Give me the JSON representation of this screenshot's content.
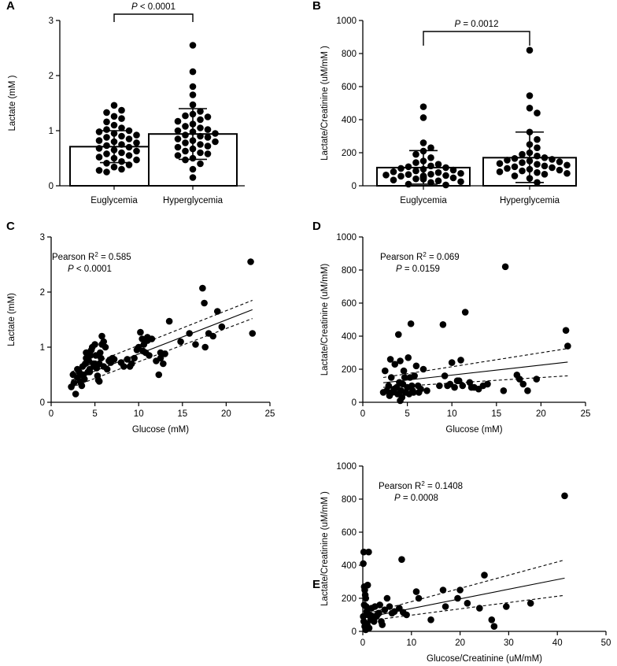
{
  "colors": {
    "ink": "#000000",
    "background": "#ffffff",
    "bar_fill": "#ffffff"
  },
  "chart_data": [
    {
      "panel": "A",
      "type": "bar",
      "categories": [
        "Euglycemia",
        "Hyperglycemia"
      ],
      "values": [
        0.71,
        0.94
      ],
      "error_bars": [
        {
          "low": 0.42,
          "high": 1.0
        },
        {
          "low": 0.48,
          "high": 1.4
        }
      ],
      "points": [
        [
          1.46,
          1.37,
          1.33,
          1.26,
          1.22,
          1.16,
          1.1,
          1.05,
          1.02,
          1.0,
          0.98,
          0.95,
          0.92,
          0.9,
          0.88,
          0.85,
          0.82,
          0.8,
          0.78,
          0.75,
          0.73,
          0.7,
          0.68,
          0.65,
          0.63,
          0.6,
          0.58,
          0.55,
          0.52,
          0.5,
          0.47,
          0.44,
          0.41,
          0.38,
          0.34,
          0.3,
          0.28,
          0.25
        ],
        [
          2.55,
          2.07,
          1.8,
          1.65,
          1.47,
          1.35,
          1.3,
          1.27,
          1.25,
          1.2,
          1.17,
          1.12,
          1.08,
          1.05,
          1.02,
          1.0,
          0.98,
          0.95,
          0.92,
          0.9,
          0.88,
          0.85,
          0.82,
          0.8,
          0.78,
          0.75,
          0.72,
          0.7,
          0.67,
          0.63,
          0.6,
          0.58,
          0.55,
          0.5,
          0.47,
          0.4,
          0.3,
          0.15
        ]
      ],
      "ylim": [
        0,
        3
      ],
      "yticks": [
        "0",
        "1",
        "2",
        "3"
      ],
      "ylabel": "Lactate (mM )",
      "significance": {
        "prefix": "P",
        "text": " < 0.0001"
      }
    },
    {
      "panel": "B",
      "type": "bar",
      "categories": [
        "Euglycemia",
        "Hyperglycemia"
      ],
      "values": [
        110,
        170
      ],
      "error_bars": [
        {
          "low": 10,
          "high": 213
        },
        {
          "low": 20,
          "high": 325
        }
      ],
      "points": [
        [
          478,
          412,
          260,
          230,
          210,
          190,
          170,
          150,
          140,
          130,
          120,
          115,
          110,
          105,
          100,
          95,
          90,
          85,
          80,
          75,
          70,
          68,
          65,
          62,
          60,
          58,
          55,
          52,
          50,
          48,
          45,
          42,
          40,
          35,
          30,
          25,
          20,
          10,
          5
        ],
        [
          820,
          545,
          470,
          440,
          325,
          280,
          250,
          230,
          200,
          190,
          180,
          170,
          165,
          160,
          155,
          150,
          145,
          140,
          135,
          130,
          125,
          120,
          115,
          110,
          105,
          100,
          95,
          90,
          85,
          80,
          75,
          70,
          60,
          45,
          20
        ]
      ],
      "ylim": [
        0,
        1000
      ],
      "yticks": [
        "0",
        "200",
        "400",
        "600",
        "800",
        "1000"
      ],
      "ylabel": "Lactate/Creatinine (uM/mM )",
      "significance": {
        "prefix": "P",
        "text": " = 0.0012"
      }
    },
    {
      "panel": "C",
      "type": "scatter",
      "x": [
        2.3,
        2.6,
        2.8,
        3.0,
        3.2,
        3.3,
        3.5,
        3.6,
        3.8,
        3.9,
        4.0,
        4.1,
        4.2,
        4.3,
        4.4,
        4.5,
        4.6,
        4.7,
        4.8,
        4.9,
        5.0,
        5.1,
        5.2,
        5.3,
        5.4,
        5.5,
        5.6,
        5.7,
        5.8,
        6.0,
        6.2,
        6.4,
        6.6,
        6.8,
        7.0,
        7.2,
        8.0,
        8.3,
        8.7,
        9.0,
        9.2,
        9.5,
        9.8,
        10.0,
        10.2,
        10.4,
        10.6,
        10.8,
        11.0,
        11.2,
        11.5,
        12.0,
        12.3,
        12.5,
        12.8,
        13.0,
        13.5,
        14.8,
        15.8,
        16.5,
        17.3,
        17.5,
        17.6,
        18.0,
        18.5,
        19.0,
        19.5,
        22.8,
        23.0,
        2.5,
        3.0,
        3.4,
        4.0,
        4.4,
        5.0,
        5.5,
        6.0,
        10.5,
        11.0,
        12.5,
        3.7,
        5.8
      ],
      "y": [
        0.28,
        0.35,
        0.15,
        0.45,
        0.55,
        0.38,
        0.3,
        0.65,
        0.42,
        0.7,
        0.8,
        0.9,
        0.55,
        0.75,
        0.6,
        0.85,
        0.95,
        1.0,
        0.7,
        0.65,
        1.05,
        0.85,
        0.62,
        0.48,
        0.4,
        0.7,
        0.9,
        0.8,
        1.2,
        1.1,
        1.0,
        0.6,
        0.75,
        0.72,
        0.8,
        0.78,
        0.72,
        0.65,
        0.78,
        0.65,
        0.7,
        0.8,
        0.95,
        1.0,
        1.27,
        1.15,
        1.05,
        0.9,
        1.12,
        0.85,
        1.15,
        0.75,
        0.5,
        0.8,
        0.7,
        0.88,
        1.47,
        1.1,
        1.25,
        1.05,
        2.07,
        1.8,
        1.0,
        1.25,
        1.2,
        1.65,
        1.37,
        2.55,
        1.25,
        0.5,
        0.6,
        0.5,
        0.9,
        0.55,
        0.7,
        0.38,
        0.65,
        0.93,
        1.18,
        0.9,
        0.5,
        1.05
      ],
      "fit": {
        "x": [
          2.3,
          23
        ],
        "y": [
          0.4,
          1.68
        ]
      },
      "ci_upper": {
        "x": [
          2.3,
          23
        ],
        "y": [
          0.55,
          1.85
        ]
      },
      "ci_lower": {
        "x": [
          2.3,
          23
        ],
        "y": [
          0.27,
          1.52
        ]
      },
      "xlim": [
        0,
        25
      ],
      "xticks": [
        "0",
        "5",
        "10",
        "15",
        "20",
        "25"
      ],
      "ylim": [
        0,
        3
      ],
      "yticks": [
        "0",
        "1",
        "2",
        "3"
      ],
      "xlabel": "Glucose (mM)",
      "ylabel": "Lactate (mM)",
      "annotation": {
        "stat_prefix": "Pearson R",
        "stat_sup": "2",
        "stat_value": " = 0.585",
        "p_prefix": "P",
        "p_text": " < 0.0001"
      }
    },
    {
      "panel": "D",
      "type": "scatter",
      "x": [
        2.3,
        2.5,
        2.7,
        2.9,
        3.0,
        3.2,
        3.3,
        3.5,
        3.6,
        3.8,
        3.9,
        4.0,
        4.1,
        4.2,
        4.3,
        4.4,
        4.5,
        4.6,
        4.7,
        4.8,
        5.0,
        5.1,
        5.2,
        5.3,
        5.4,
        5.5,
        5.6,
        5.8,
        6.0,
        6.3,
        6.5,
        6.8,
        7.2,
        8.6,
        9.0,
        9.2,
        9.5,
        9.8,
        10.0,
        10.3,
        10.6,
        11.0,
        11.2,
        11.5,
        12.0,
        12.5,
        13.0,
        13.5,
        14.0,
        15.8,
        16.0,
        17.3,
        17.6,
        18.0,
        18.5,
        19.5,
        22.8,
        23.0,
        3.1,
        4.2,
        5.7,
        6.2,
        10.8,
        12.2
      ],
      "y": [
        60,
        190,
        70,
        100,
        40,
        150,
        60,
        80,
        230,
        90,
        50,
        410,
        120,
        250,
        70,
        30,
        110,
        190,
        150,
        60,
        90,
        270,
        50,
        150,
        475,
        100,
        70,
        160,
        220,
        60,
        80,
        200,
        70,
        100,
        470,
        160,
        100,
        110,
        240,
        90,
        130,
        255,
        100,
        545,
        120,
        90,
        80,
        100,
        110,
        70,
        820,
        165,
        140,
        110,
        70,
        140,
        435,
        340,
        260,
        10,
        60,
        100,
        130,
        90
      ],
      "fit": {
        "x": [
          2.3,
          23
        ],
        "y": [
          118,
          243
        ]
      },
      "ci_upper": {
        "x": [
          2.3,
          23
        ],
        "y": [
          150,
          325
        ]
      },
      "ci_lower": {
        "x": [
          2.3,
          23
        ],
        "y": [
          90,
          160
        ]
      },
      "xlim": [
        0,
        25
      ],
      "xticks": [
        "0",
        "5",
        "10",
        "15",
        "20",
        "25"
      ],
      "ylim": [
        0,
        1000
      ],
      "yticks": [
        "0",
        "200",
        "400",
        "600",
        "800",
        "1000"
      ],
      "xlabel": "Glucose (mM)",
      "ylabel": "Lactate/Creatinine (uM/mM)",
      "annotation": {
        "stat_prefix": "Pearson R",
        "stat_sup": "2",
        "stat_value": " = 0.069",
        "p_prefix": "P",
        "p_text": " = 0.0159"
      }
    },
    {
      "panel": "E",
      "type": "scatter",
      "x": [
        0.1,
        0.2,
        0.3,
        0.4,
        0.5,
        0.6,
        0.7,
        0.8,
        1.0,
        1.2,
        1.5,
        1.8,
        2.0,
        2.3,
        2.5,
        2.8,
        3.0,
        3.3,
        3.5,
        3.8,
        4.0,
        4.5,
        5.0,
        5.5,
        6.0,
        6.5,
        7.5,
        8.0,
        8.3,
        9.0,
        11.0,
        11.5,
        14.0,
        16.5,
        17.0,
        19.5,
        20.0,
        21.5,
        24.0,
        25.0,
        26.5,
        27.0,
        29.5,
        34.5,
        41.5,
        0.2,
        0.4,
        0.6,
        1.3,
        0.1,
        0.3,
        0.5,
        0.9,
        1.1,
        1.6,
        2.1,
        3.2
      ],
      "y": [
        410,
        480,
        270,
        250,
        220,
        200,
        150,
        120,
        280,
        480,
        100,
        140,
        80,
        60,
        150,
        90,
        100,
        110,
        160,
        60,
        40,
        130,
        200,
        150,
        110,
        120,
        140,
        435,
        115,
        100,
        240,
        200,
        70,
        250,
        150,
        200,
        250,
        170,
        140,
        340,
        70,
        30,
        150,
        170,
        820,
        60,
        30,
        10,
        20,
        90,
        160,
        50,
        40,
        100,
        70,
        90,
        110
      ],
      "fit": {
        "x": [
          0,
          41.5
        ],
        "y": [
          80,
          322
        ]
      },
      "ci_upper": {
        "x": [
          0,
          41.5
        ],
        "y": [
          100,
          432
        ]
      },
      "ci_lower": {
        "x": [
          0,
          41.5
        ],
        "y": [
          60,
          218
        ]
      },
      "xlim": [
        0,
        50
      ],
      "xticks": [
        "0",
        "10",
        "20",
        "30",
        "40",
        "50"
      ],
      "ylim": [
        0,
        1000
      ],
      "yticks": [
        "0",
        "200",
        "400",
        "600",
        "800",
        "1000"
      ],
      "xlabel": "Glucose/Creatinine (uM/mM)",
      "ylabel": "Lactate/Creatinine (uM/mM )",
      "annotation": {
        "stat_prefix": "Pearson R",
        "stat_sup": "2",
        "stat_value": " = 0.1408",
        "p_prefix": "P",
        "p_text": " = 0.0008"
      }
    }
  ]
}
